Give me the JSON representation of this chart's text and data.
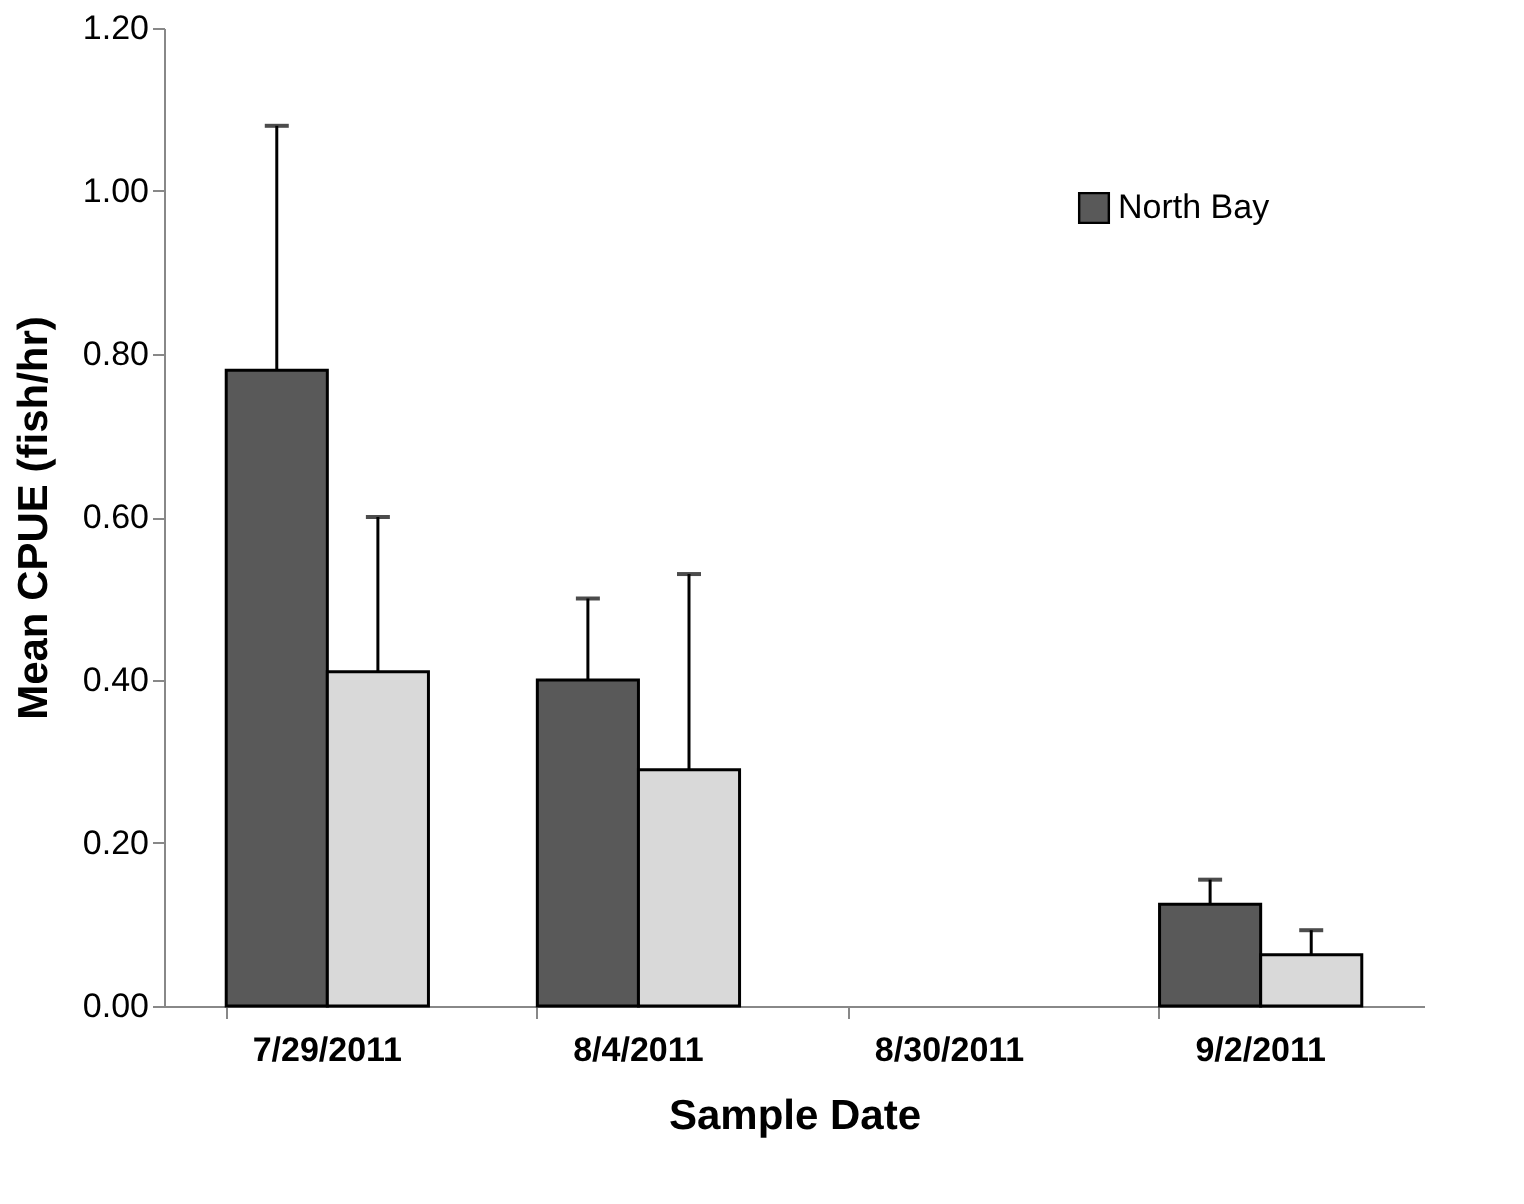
{
  "chart_data": {
    "type": "bar",
    "xlabel": "Sample Date",
    "ylabel": "Mean CPUE (fish/hr)",
    "categories": [
      "7/29/2011",
      "8/4/2011",
      "8/30/2011",
      "9/2/2011"
    ],
    "series": [
      {
        "name": "North Bay",
        "color": "#595959",
        "values": [
          0.78,
          0.4,
          null,
          0.125
        ],
        "errors": [
          0.3,
          0.1,
          null,
          0.03
        ]
      },
      {
        "color": "#d9d9d9",
        "values": [
          0.41,
          0.29,
          null,
          0.063
        ],
        "errors": [
          0.19,
          0.24,
          null,
          0.03
        ]
      }
    ],
    "ylim": [
      0,
      1.2
    ],
    "yticks": [
      {
        "value": 0,
        "label": "0.00"
      },
      {
        "value": 0.2,
        "label": "0.20"
      },
      {
        "value": 0.4,
        "label": "0.40"
      },
      {
        "value": 0.6,
        "label": "0.60"
      },
      {
        "value": 0.8,
        "label": "0.80"
      },
      {
        "value": 1.0,
        "label": "1.00"
      },
      {
        "value": 1.2,
        "label": "1.20"
      }
    ],
    "grid": false,
    "legend": "top right"
  }
}
